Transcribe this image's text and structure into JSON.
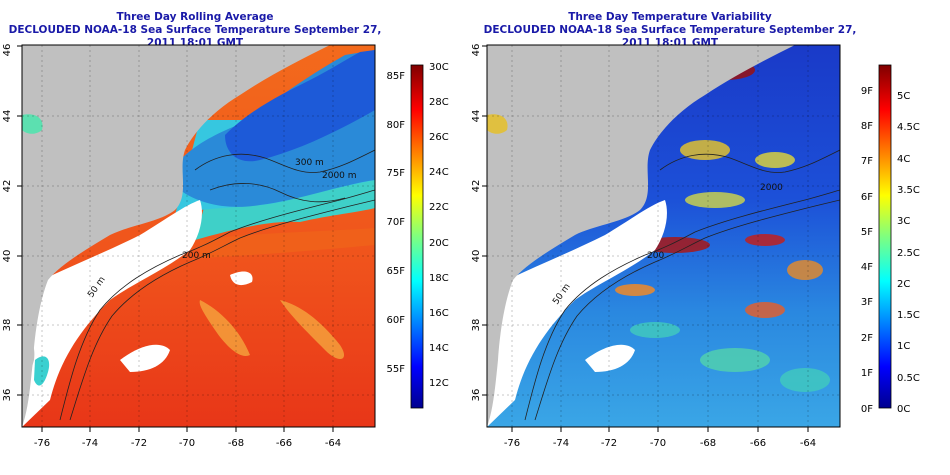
{
  "left_panel": {
    "title": "Three Day Rolling Average",
    "subtitle": "DECLOUDED NOAA-18 Sea Surface Temperature September 27, 2011 18:01 GMT",
    "x_ticks": [
      "-76",
      "-74",
      "-72",
      "-70",
      "-68",
      "-66",
      "-64"
    ],
    "y_ticks": [
      "36",
      "38",
      "40",
      "42",
      "44",
      "46"
    ],
    "contours": [
      "200 m",
      "300 m",
      "2000 m",
      "50 m"
    ],
    "colorbar_f": [
      "55F",
      "60F",
      "65F",
      "70F",
      "75F",
      "80F",
      "85F"
    ],
    "colorbar_c": [
      "12C",
      "14C",
      "16C",
      "18C",
      "20C",
      "22C",
      "24C",
      "26C",
      "28C",
      "30C"
    ]
  },
  "right_panel": {
    "title": "Three Day Temperature Variability",
    "subtitle": "DECLOUDED NOAA-18 Sea Surface Temperature September 27, 2011 18:01 GMT",
    "x_ticks": [
      "-76",
      "-74",
      "-72",
      "-70",
      "-68",
      "-66",
      "-64"
    ],
    "y_ticks": [
      "36",
      "38",
      "40",
      "42",
      "44",
      "46"
    ],
    "contours": [
      "200",
      "2000",
      "50 m"
    ],
    "colorbar_f": [
      "0F",
      "1F",
      "2F",
      "3F",
      "4F",
      "5F",
      "6F",
      "7F",
      "8F",
      "9F"
    ],
    "colorbar_c": [
      "0C",
      "0.5C",
      "1C",
      "1.5C",
      "2C",
      "2.5C",
      "3C",
      "3.5C",
      "4C",
      "4.5C",
      "5C"
    ]
  },
  "colors": {
    "title": "#1a1aa8",
    "land": "#c0c0c0",
    "cloud_mask": "#ffffff",
    "frame": "#000000"
  }
}
